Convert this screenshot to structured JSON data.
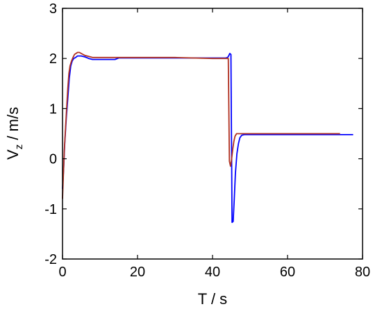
{
  "chart_data": {
    "type": "line",
    "xlabel": "T / s",
    "ylabel_main": "V",
    "ylabel_sub": "z",
    "ylabel_unit": " / m/s",
    "xlim": [
      0,
      80
    ],
    "ylim": [
      -2,
      3
    ],
    "x_ticks": [
      0,
      20,
      40,
      60,
      80
    ],
    "y_ticks": [
      -2,
      -1,
      0,
      1,
      2,
      3
    ],
    "grid": false,
    "series": [
      {
        "color": "#0000ff",
        "x": [
          0,
          0.3,
          0.6,
          1.0,
          1.4,
          1.8,
          2.2,
          2.6,
          3.0,
          3.5,
          4.0,
          5.0,
          6.0,
          7.0,
          8.0,
          9.0,
          12.0,
          14.0,
          15.0,
          20.0,
          30.0,
          35.0,
          40.0,
          43.5,
          44.0,
          44.3,
          44.6,
          44.9,
          45.2,
          45.5,
          45.8,
          46.1,
          46.5,
          46.9,
          47.3,
          47.8,
          48.5,
          50.0,
          55.0,
          60.0,
          65.0,
          70.0,
          75.0,
          77.5
        ],
        "y": [
          -0.6,
          -0.2,
          0.3,
          0.8,
          1.2,
          1.6,
          1.85,
          1.95,
          2.0,
          2.02,
          2.05,
          2.05,
          2.03,
          2.0,
          1.98,
          1.98,
          1.98,
          1.98,
          2.01,
          2.01,
          2.01,
          2.01,
          2.01,
          2.01,
          2.02,
          2.05,
          2.1,
          2.08,
          -1.27,
          -1.25,
          -0.8,
          -0.3,
          0.1,
          0.3,
          0.42,
          0.47,
          0.48,
          0.48,
          0.48,
          0.48,
          0.48,
          0.48,
          0.48,
          0.48
        ]
      },
      {
        "color": "#b03020",
        "x": [
          0,
          0.25,
          0.5,
          0.8,
          1.1,
          1.4,
          1.7,
          2.0,
          2.4,
          2.8,
          3.2,
          3.6,
          4.0,
          4.5,
          5.0,
          6.0,
          7.0,
          8.0,
          10.0,
          15.0,
          20.0,
          30.0,
          40.0,
          44.2,
          44.5,
          44.8,
          45.1,
          45.4,
          45.7,
          46.0,
          46.4,
          46.8,
          47.3,
          48.0,
          50.0,
          55.0,
          60.0,
          65.0,
          70.0,
          74.0
        ],
        "y": [
          -0.8,
          -0.3,
          0.2,
          0.6,
          1.0,
          1.4,
          1.7,
          1.85,
          1.95,
          2.02,
          2.08,
          2.1,
          2.12,
          2.12,
          2.1,
          2.06,
          2.04,
          2.02,
          2.02,
          2.02,
          2.02,
          2.02,
          2.0,
          2.0,
          -0.05,
          -0.15,
          0.0,
          0.2,
          0.35,
          0.45,
          0.5,
          0.5,
          0.5,
          0.5,
          0.5,
          0.5,
          0.5,
          0.5,
          0.5,
          0.5
        ]
      }
    ]
  }
}
